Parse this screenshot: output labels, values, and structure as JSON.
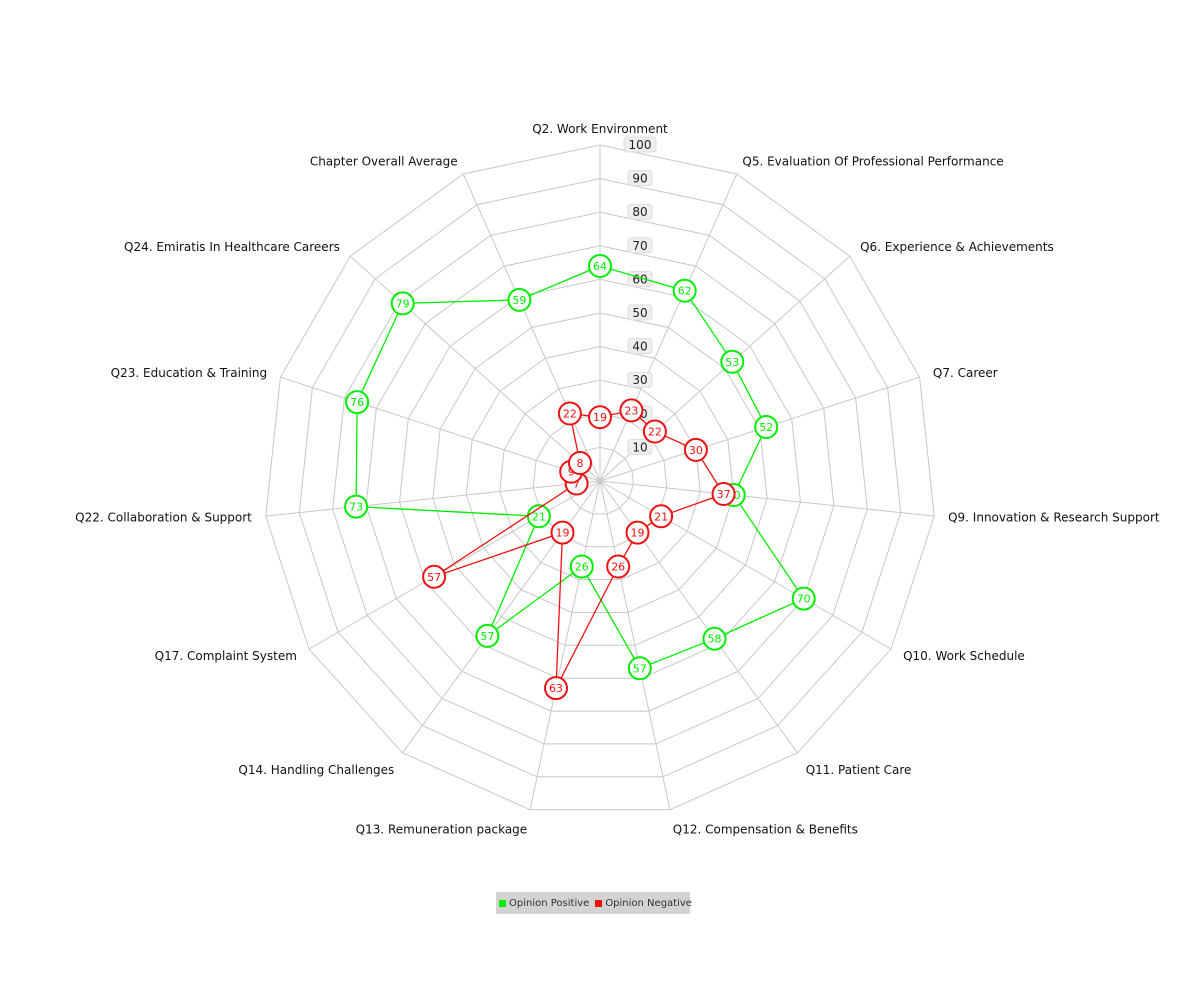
{
  "chart_data": {
    "type": "radar",
    "categories": [
      "Q2. Work Environment",
      "Q5. Evaluation Of Professional Performance",
      "Q6. Experience & Achievements",
      "Q7. Career",
      "Q9. Innovation & Research Support",
      "Q10. Work Schedule",
      "Q11. Patient Care",
      "Q12. Compensation & Benefits",
      "Q13. Remuneration package",
      "Q14. Handling Challenges",
      "Q17. Complaint System",
      "Q22. Collaboration & Support",
      "Q23. Education & Training",
      "Q24. Emiratis In Healthcare Careers",
      "Chapter Overall Average"
    ],
    "series": [
      {
        "name": "Opinion Positive",
        "color": "#00ee00",
        "values": [
          64,
          62,
          53,
          52,
          40,
          70,
          58,
          57,
          26,
          57,
          21,
          73,
          76,
          79,
          59
        ]
      },
      {
        "name": "Opinion Negative",
        "color": "#ee1111",
        "values": [
          19,
          23,
          22,
          30,
          37,
          21,
          19,
          26,
          63,
          19,
          57,
          7,
          9,
          8,
          22
        ]
      }
    ],
    "rlim": [
      0,
      100
    ],
    "ticks": [
      "10",
      "20",
      "30",
      "40",
      "50",
      "60",
      "70",
      "80",
      "90",
      "100"
    ],
    "grid": true,
    "legend_position": "bottom"
  }
}
